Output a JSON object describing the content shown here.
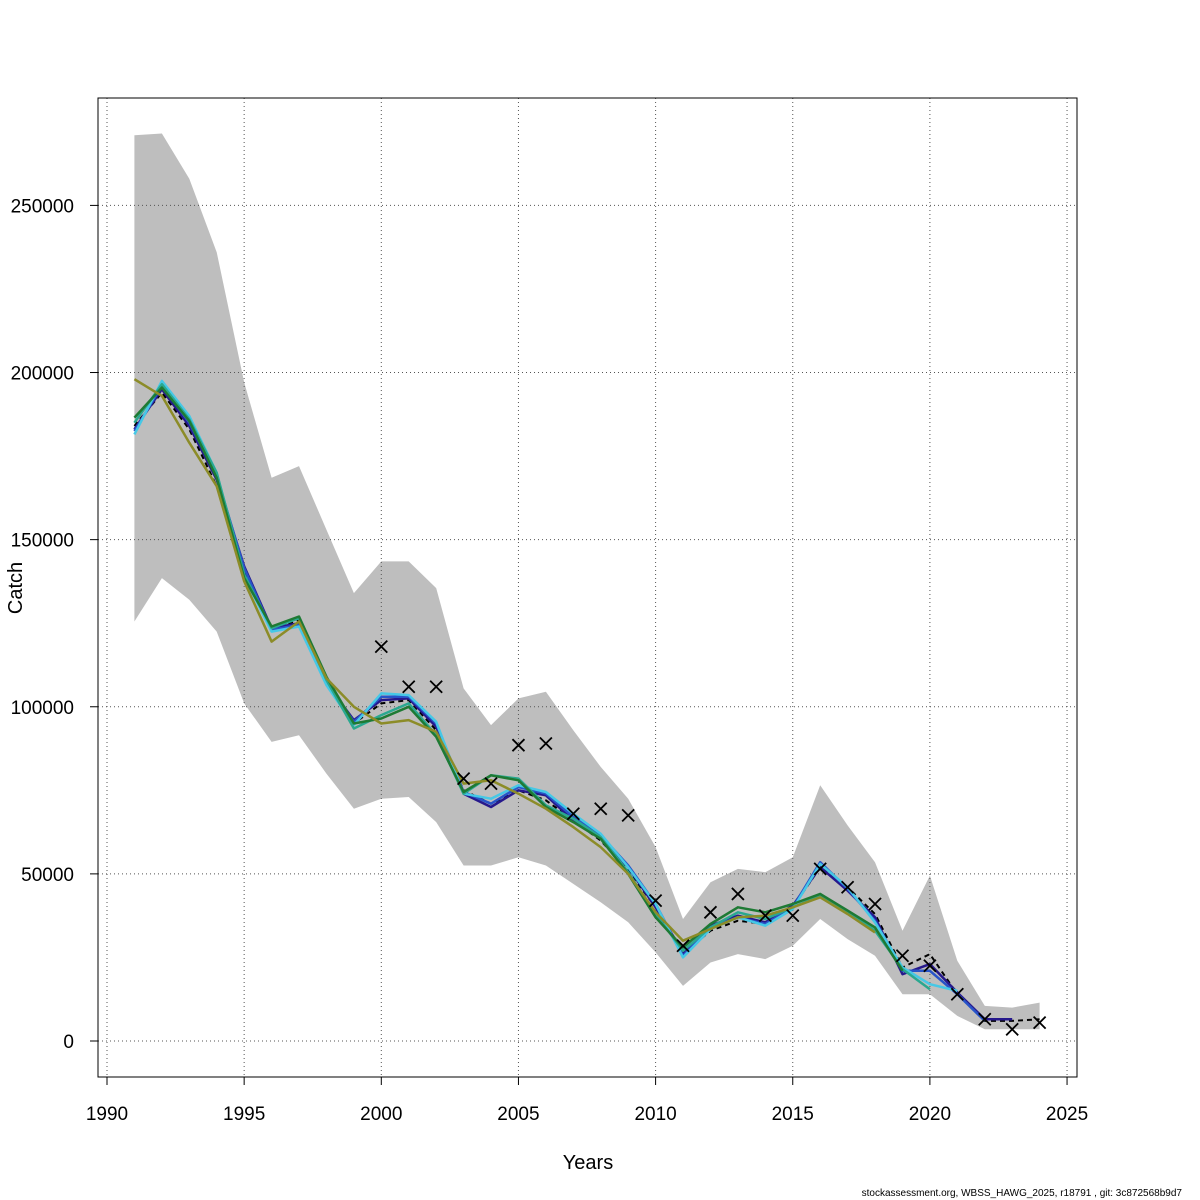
{
  "chart_data": {
    "type": "line",
    "xlabel": "Years",
    "ylabel": "Catch",
    "xlim": [
      1990,
      2025
    ],
    "ylim": [
      0,
      280000
    ],
    "x_ticks": [
      1990,
      1995,
      2000,
      2005,
      2010,
      2015,
      2020,
      2025
    ],
    "y_ticks": [
      0,
      50000,
      100000,
      150000,
      200000,
      250000
    ],
    "grid": true,
    "confidence_band": {
      "x": [
        1991,
        1992,
        1993,
        1994,
        1995,
        1996,
        1997,
        1998,
        1999,
        2000,
        2001,
        2002,
        2003,
        2004,
        2005,
        2006,
        2007,
        2008,
        2009,
        2010,
        2011,
        2012,
        2013,
        2014,
        2015,
        2016,
        2017,
        2018,
        2019,
        2020,
        2021,
        2022,
        2023,
        2024
      ],
      "upper": [
        271000,
        271500,
        258000,
        236000,
        197000,
        168500,
        172000,
        153000,
        134000,
        143500,
        143500,
        135500,
        105500,
        94500,
        102500,
        104500,
        93000,
        82000,
        72500,
        58000,
        36500,
        47500,
        51500,
        50500,
        55000,
        76500,
        64500,
        53500,
        33000,
        49500,
        24000,
        10500,
        10000,
        11500
      ],
      "lower": [
        125500,
        138500,
        132000,
        122500,
        101000,
        89500,
        91500,
        80000,
        69500,
        72500,
        73000,
        65500,
        52500,
        52500,
        55000,
        52500,
        47000,
        41500,
        35500,
        26500,
        16500,
        23500,
        26000,
        24500,
        28500,
        36500,
        30500,
        25500,
        14000,
        14000,
        7500,
        3500,
        3500,
        3500
      ]
    },
    "series": [
      {
        "color": "#000000",
        "dash": true,
        "x": [
          1991,
          1992,
          1993,
          1994,
          1995,
          1996,
          1997,
          1998,
          1999,
          2000,
          2001,
          2002,
          2003,
          2004,
          2005,
          2006,
          2007,
          2008,
          2009,
          2010,
          2011,
          2012,
          2013,
          2014,
          2015,
          2016,
          2017,
          2018,
          2019,
          2020,
          2021,
          2022,
          2023,
          2024
        ],
        "y": [
          184000,
          194000,
          183000,
          166000,
          141000,
          123000,
          126000,
          108000,
          95000,
          101000,
          102000,
          93000,
          75000,
          71000,
          75000,
          72000,
          66000,
          60000,
          51000,
          40000,
          26000,
          33000,
          36000,
          35000,
          40000,
          52000,
          46000,
          38000,
          22000,
          26000,
          14000,
          6000,
          6000,
          6500
        ]
      },
      {
        "color": "#26188c",
        "dash": false,
        "x": [
          1991,
          1992,
          1993,
          1994,
          1995,
          1996,
          1997,
          1998,
          1999,
          2000,
          2001,
          2002,
          2003,
          2004,
          2005,
          2006,
          2007,
          2008,
          2009,
          2010,
          2011,
          2012,
          2013,
          2014,
          2015,
          2016,
          2017,
          2018,
          2019,
          2020,
          2021,
          2022,
          2023
        ],
        "y": [
          183000,
          195000,
          184000,
          168000,
          142000,
          123500,
          125000,
          107000,
          96000,
          102000,
          102500,
          94000,
          74000,
          70000,
          75000,
          73500,
          66000,
          61000,
          52000,
          40000,
          26500,
          34500,
          37500,
          35500,
          40500,
          52000,
          45000,
          37000,
          20000,
          23000,
          14500,
          6500,
          6500
        ]
      },
      {
        "color": "#2854c8",
        "dash": false,
        "x": [
          1991,
          1992,
          1993,
          1994,
          1995,
          1996,
          1997,
          1998,
          1999,
          2000,
          2001,
          2002,
          2003,
          2004,
          2005,
          2006,
          2007,
          2008,
          2009,
          2010,
          2011,
          2012,
          2013,
          2014,
          2015,
          2016,
          2017,
          2018,
          2019,
          2020,
          2021,
          2022
        ],
        "y": [
          182500,
          196000,
          185000,
          169000,
          141500,
          123000,
          124500,
          107500,
          95500,
          103000,
          103000,
          95000,
          74500,
          71000,
          76000,
          74000,
          67000,
          61500,
          52500,
          41000,
          25500,
          34000,
          37000,
          35000,
          40000,
          53500,
          45500,
          36000,
          21000,
          21000,
          14000,
          6000
        ]
      },
      {
        "color": "#46c8e6",
        "dash": false,
        "x": [
          1991,
          1992,
          1993,
          1994,
          1995,
          1996,
          1997,
          1998,
          1999,
          2000,
          2001,
          2002,
          2003,
          2004,
          2005,
          2006,
          2007,
          2008,
          2009,
          2010,
          2011,
          2012,
          2013,
          2014,
          2015,
          2016,
          2017,
          2018,
          2019,
          2020,
          2021
        ],
        "y": [
          181500,
          197500,
          187000,
          170000,
          139000,
          122500,
          124000,
          106500,
          94500,
          104000,
          103500,
          95500,
          74000,
          72500,
          76500,
          74500,
          68000,
          62000,
          52000,
          41000,
          25000,
          33500,
          37000,
          34500,
          39500,
          53000,
          46000,
          35500,
          22000,
          17000,
          15000
        ]
      },
      {
        "color": "#2aa890",
        "dash": false,
        "x": [
          1991,
          1992,
          1993,
          1994,
          1995,
          1996,
          1997,
          1998,
          1999,
          2000,
          2001,
          2002,
          2003,
          2004,
          2005,
          2006,
          2007,
          2008,
          2009,
          2010,
          2011,
          2012,
          2013,
          2014,
          2015,
          2016,
          2017,
          2018,
          2019,
          2020
        ],
        "y": [
          185000,
          196500,
          186000,
          170000,
          139500,
          123500,
          126500,
          108000,
          93500,
          97500,
          101000,
          91500,
          74000,
          79500,
          78500,
          70500,
          66500,
          61000,
          50500,
          38000,
          27000,
          34000,
          38500,
          36500,
          40000,
          43500,
          38500,
          33000,
          21500,
          15500
        ]
      },
      {
        "color": "#1e7a34",
        "dash": false,
        "x": [
          1991,
          1992,
          1993,
          1994,
          1995,
          1996,
          1997,
          1998,
          1999,
          2000,
          2001,
          2002,
          2003,
          2004,
          2005,
          2006,
          2007,
          2008,
          2009,
          2010,
          2011,
          2012,
          2013,
          2014,
          2015,
          2016,
          2017,
          2018,
          2019
        ],
        "y": [
          186500,
          195500,
          185500,
          168500,
          138500,
          124000,
          127000,
          109000,
          95000,
          96500,
          100000,
          91000,
          74500,
          79500,
          78000,
          70000,
          65500,
          60500,
          50000,
          37000,
          28000,
          35000,
          40000,
          38500,
          41000,
          44000,
          39000,
          34000,
          21000
        ]
      },
      {
        "color": "#8c8c28",
        "dash": false,
        "x": [
          1991,
          1992,
          1993,
          1994,
          1995,
          1996,
          1997,
          1998,
          1999,
          2000,
          2001,
          2002,
          2003,
          2004,
          2005,
          2006,
          2007,
          2008,
          2009,
          2010,
          2011,
          2012,
          2013,
          2014,
          2015,
          2016,
          2017,
          2018
        ],
        "y": [
          198000,
          193000,
          179000,
          166000,
          137500,
          119500,
          125500,
          108500,
          100000,
          95000,
          96000,
          92500,
          77000,
          78000,
          74000,
          69500,
          64000,
          58000,
          50000,
          38500,
          30000,
          33500,
          37000,
          37500,
          40000,
          43000,
          38000,
          32500
        ]
      }
    ],
    "observed": {
      "marker": "x",
      "x": [
        2000,
        2001,
        2002,
        2003,
        2004,
        2005,
        2006,
        2007,
        2008,
        2009,
        2010,
        2011,
        2012,
        2013,
        2014,
        2015,
        2016,
        2017,
        2018,
        2019,
        2020,
        2021,
        2022,
        2023,
        2024
      ],
      "y": [
        118000,
        106000,
        106000,
        78500,
        77000,
        88500,
        89000,
        68000,
        69500,
        67500,
        42000,
        28500,
        38500,
        44000,
        37500,
        37500,
        51500,
        46000,
        41000,
        25500,
        22500,
        14000,
        6500,
        3500,
        5500
      ]
    }
  },
  "footer": "stockassessment.org, WBSS_HAWG_2025, r18791 , git: 3c872568b9d7"
}
